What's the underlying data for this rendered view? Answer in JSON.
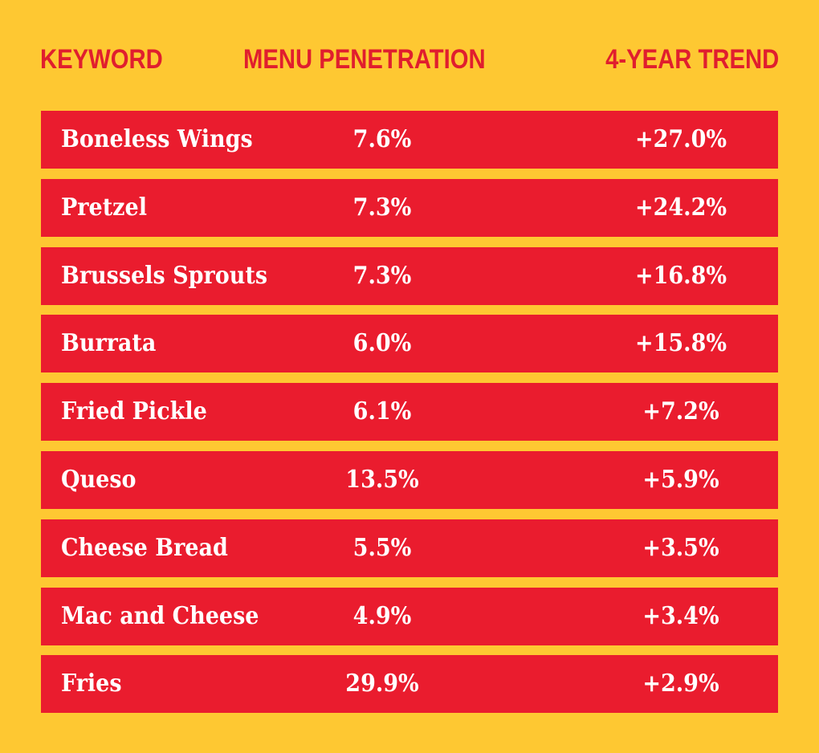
{
  "colors": {
    "background": "#fec832",
    "header_text": "#e01e2e",
    "row_fill": "#ea1c2e",
    "row_text": "#ffffff"
  },
  "chart_data": {
    "type": "table",
    "columns": [
      "KEYWORD",
      "MENU PENETRATION",
      "4-YEAR TREND"
    ],
    "rows": [
      {
        "keyword": "Boneless Wings",
        "penetration": "7.6%",
        "trend": "+27.0%"
      },
      {
        "keyword": "Pretzel",
        "penetration": "7.3%",
        "trend": "+24.2%"
      },
      {
        "keyword": "Brussels Sprouts",
        "penetration": "7.3%",
        "trend": "+16.8%"
      },
      {
        "keyword": "Burrata",
        "penetration": "6.0%",
        "trend": "+15.8%"
      },
      {
        "keyword": "Fried Pickle",
        "penetration": "6.1%",
        "trend": "+7.2%"
      },
      {
        "keyword": "Queso",
        "penetration": "13.5%",
        "trend": "+5.9%"
      },
      {
        "keyword": "Cheese Bread",
        "penetration": "5.5%",
        "trend": "+3.5%"
      },
      {
        "keyword": "Mac and Cheese",
        "penetration": "4.9%",
        "trend": "+3.4%"
      },
      {
        "keyword": "Fries",
        "penetration": "29.9%",
        "trend": "+2.9%"
      }
    ]
  }
}
